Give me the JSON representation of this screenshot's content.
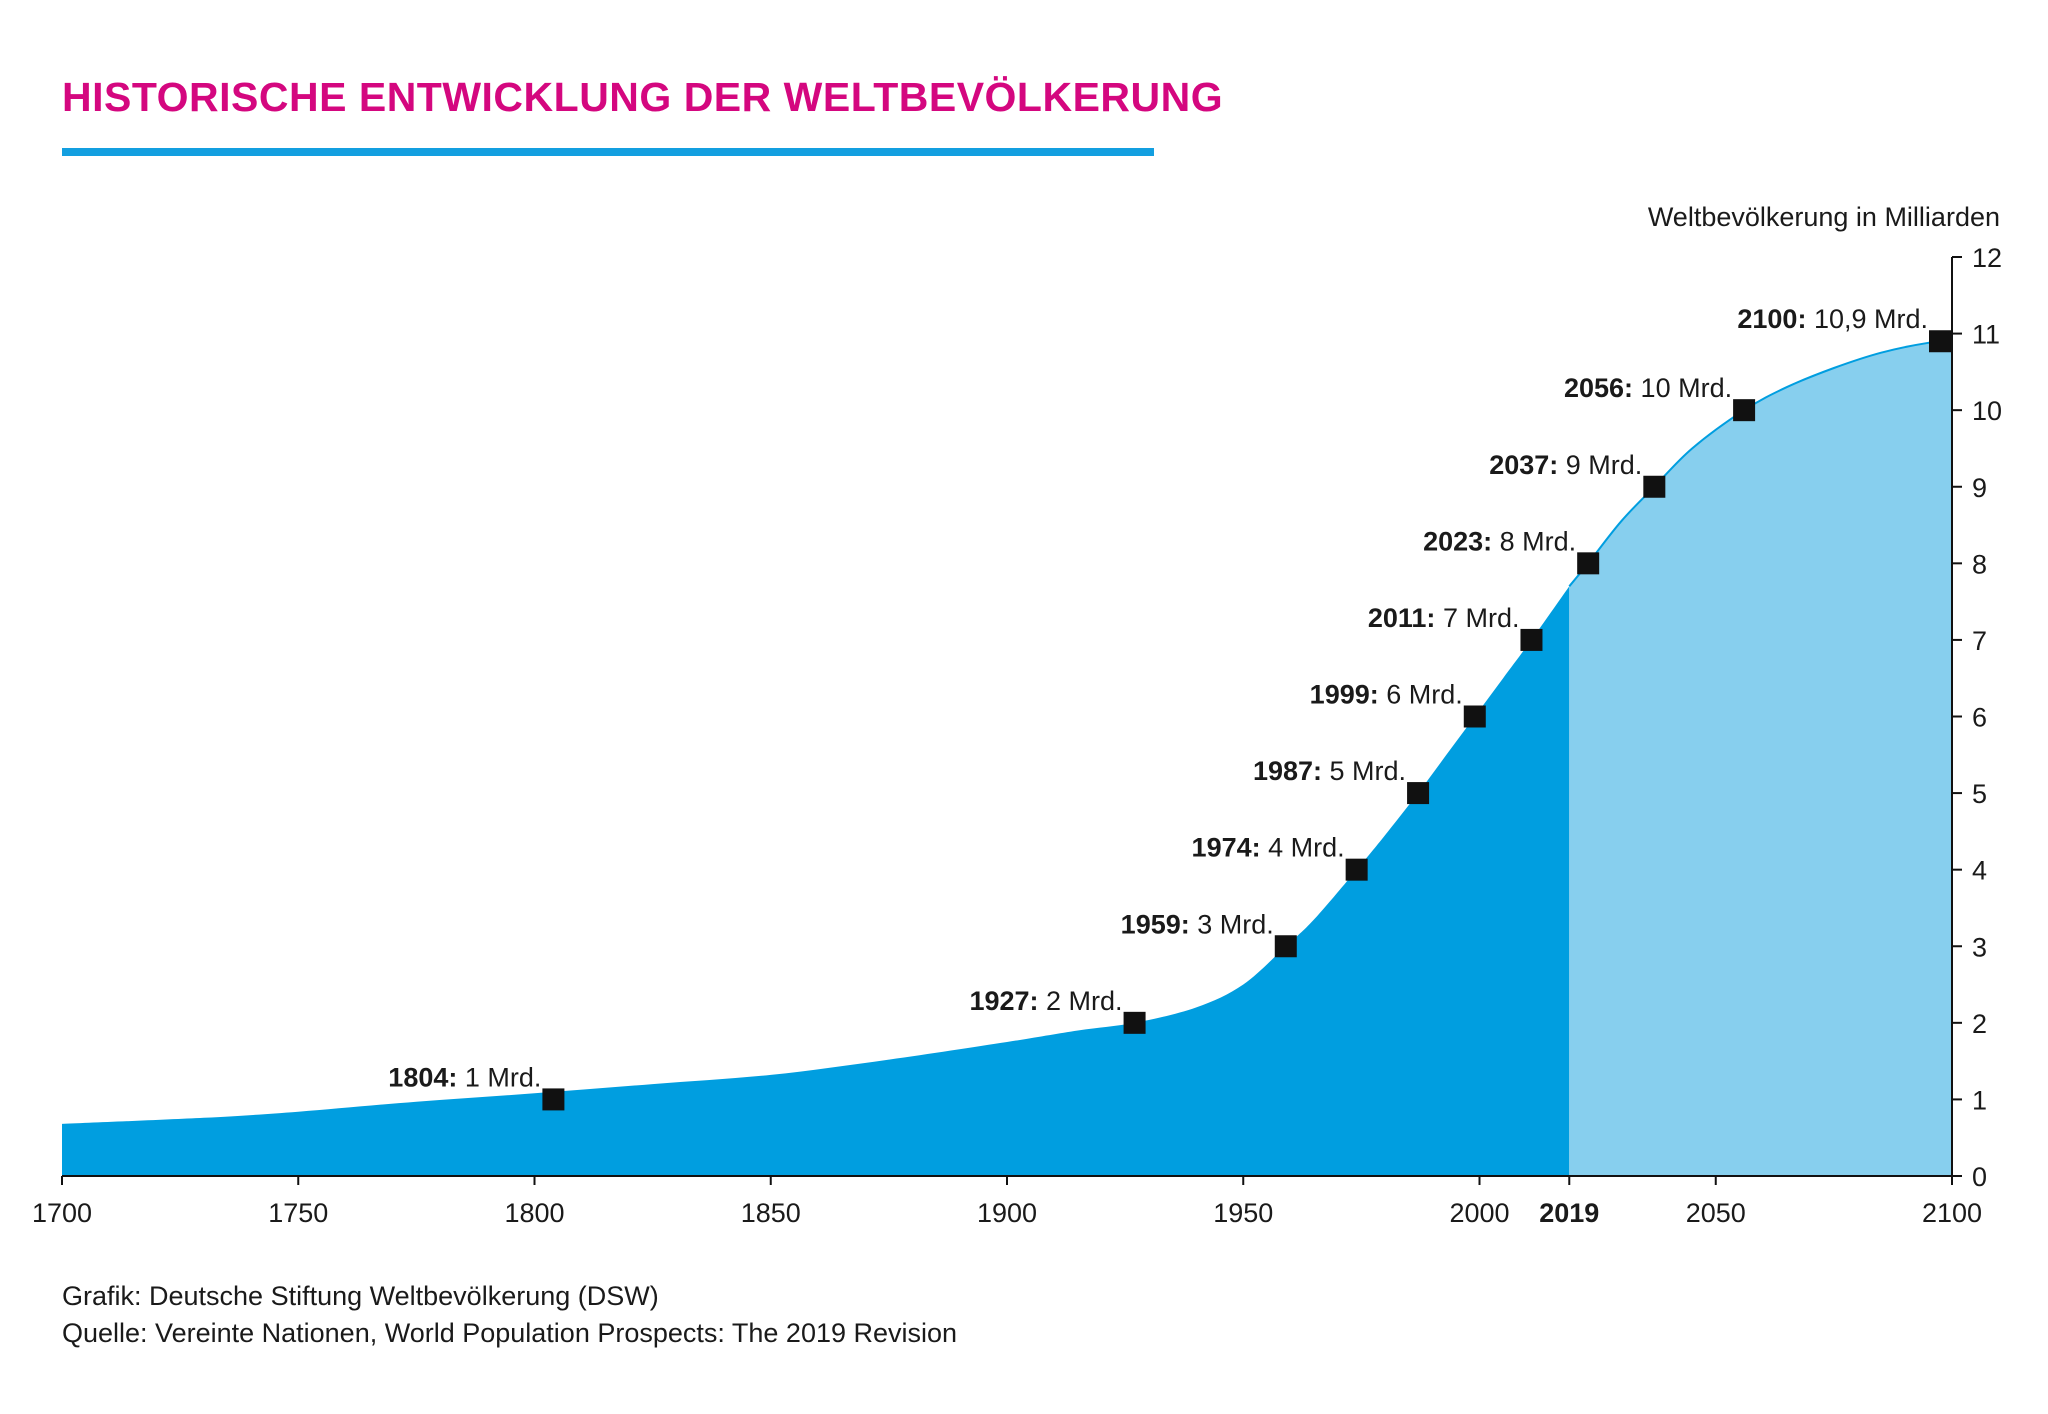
{
  "title": "HISTORISCHE ENTWICKLUNG DER WELTBEVÖLKERUNG",
  "footer": {
    "credit": "Grafik: Deutsche Stiftung Weltbevölkerung (DSW)",
    "source": "Quelle: Vereinte Nationen, World Population Prospects: The 2019 Revision"
  },
  "colors": {
    "title": "#d4077f",
    "rule": "#139fe0",
    "historical_fill": "#009ee0",
    "projection_fill": "#87cfee",
    "marker": "#111111"
  },
  "chart_data": {
    "type": "area",
    "ylabel": "Weltbevölkerung in Milliarden",
    "xlim": [
      1700,
      2100
    ],
    "ylim": [
      0,
      12
    ],
    "x_ticks": [
      "1700",
      "1750",
      "1800",
      "1850",
      "1900",
      "1950",
      "2000",
      "2019",
      "2050",
      "2100"
    ],
    "x_tick_values": [
      1700,
      1750,
      1800,
      1850,
      1900,
      1950,
      2000,
      2019,
      2050,
      2100
    ],
    "y_ticks": [
      "0",
      "1",
      "2",
      "3",
      "4",
      "5",
      "6",
      "7",
      "8",
      "9",
      "10",
      "11",
      "12"
    ],
    "y_axis_side": "right",
    "projection_start": 2019,
    "curve": {
      "x": [
        1700,
        1730,
        1750,
        1775,
        1800,
        1825,
        1850,
        1875,
        1900,
        1915,
        1927,
        1940,
        1950,
        1959,
        1965,
        1974,
        1980,
        1987,
        1993,
        1999,
        2005,
        2011,
        2019,
        2023,
        2030,
        2037,
        2045,
        2056,
        2065,
        2075,
        2085,
        2095,
        2100
      ],
      "y": [
        0.68,
        0.76,
        0.84,
        0.97,
        1.08,
        1.2,
        1.32,
        1.52,
        1.75,
        1.9,
        2.0,
        2.2,
        2.5,
        3.0,
        3.35,
        4.0,
        4.45,
        5.0,
        5.5,
        6.0,
        6.5,
        7.0,
        7.7,
        8.0,
        8.55,
        9.0,
        9.5,
        10.0,
        10.3,
        10.55,
        10.75,
        10.88,
        10.9
      ]
    },
    "milestones": [
      {
        "year": "1804",
        "text": "1 Mrd.",
        "x": 1804,
        "y": 1.0
      },
      {
        "year": "1927",
        "text": "2 Mrd.",
        "x": 1927,
        "y": 2.0
      },
      {
        "year": "1959",
        "text": "3 Mrd.",
        "x": 1959,
        "y": 3.0
      },
      {
        "year": "1974",
        "text": "4 Mrd.",
        "x": 1974,
        "y": 4.0
      },
      {
        "year": "1987",
        "text": "5 Mrd.",
        "x": 1987,
        "y": 5.0
      },
      {
        "year": "1999",
        "text": "6 Mrd.",
        "x": 1999,
        "y": 6.0
      },
      {
        "year": "2011",
        "text": "7 Mrd.",
        "x": 2011,
        "y": 7.0
      },
      {
        "year": "2023",
        "text": "8 Mrd.",
        "x": 2023,
        "y": 8.0
      },
      {
        "year": "2037",
        "text": "9 Mrd.",
        "x": 2037,
        "y": 9.0
      },
      {
        "year": "2056",
        "text": "10 Mrd.",
        "x": 2056,
        "y": 10.0
      },
      {
        "year": "2100",
        "text": "10,9 Mrd.",
        "x": 2100,
        "y": 10.9
      }
    ]
  }
}
